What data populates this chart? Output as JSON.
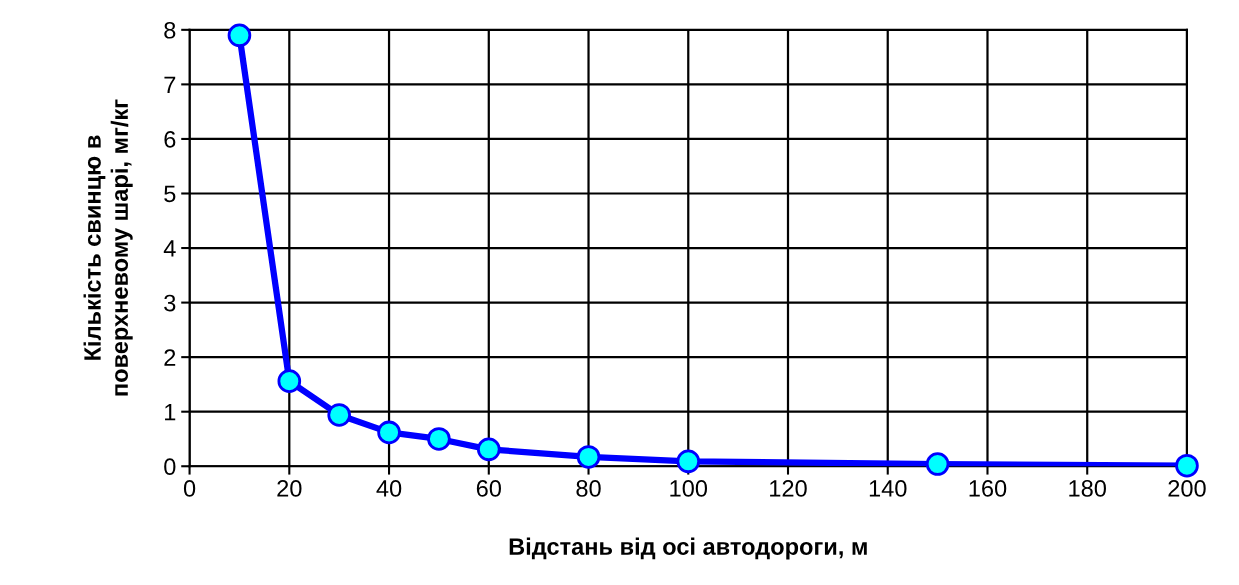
{
  "chart_data": {
    "type": "line",
    "xlabel": "Відстань від осі автодороги, м",
    "ylabel": "Кількість свинцю в\nповерхневому шарі, мг/кг",
    "x": [
      10,
      20,
      30,
      40,
      50,
      60,
      80,
      100,
      150,
      200
    ],
    "series": [
      {
        "color": "#0000ff",
        "values": [
          7.9,
          1.56,
          0.94,
          0.62,
          0.5,
          0.31,
          0.17,
          0.09,
          0.04,
          0.01
        ]
      }
    ],
    "xlim": [
      0,
      200
    ],
    "xticks": [
      0,
      20,
      40,
      60,
      80,
      100,
      120,
      140,
      160,
      180,
      200
    ],
    "ylim": [
      0,
      8
    ],
    "yticks": [
      0,
      1,
      2,
      3,
      4,
      5,
      6,
      7,
      8
    ],
    "grid": true,
    "marker": "circle",
    "line_style": "solid"
  }
}
